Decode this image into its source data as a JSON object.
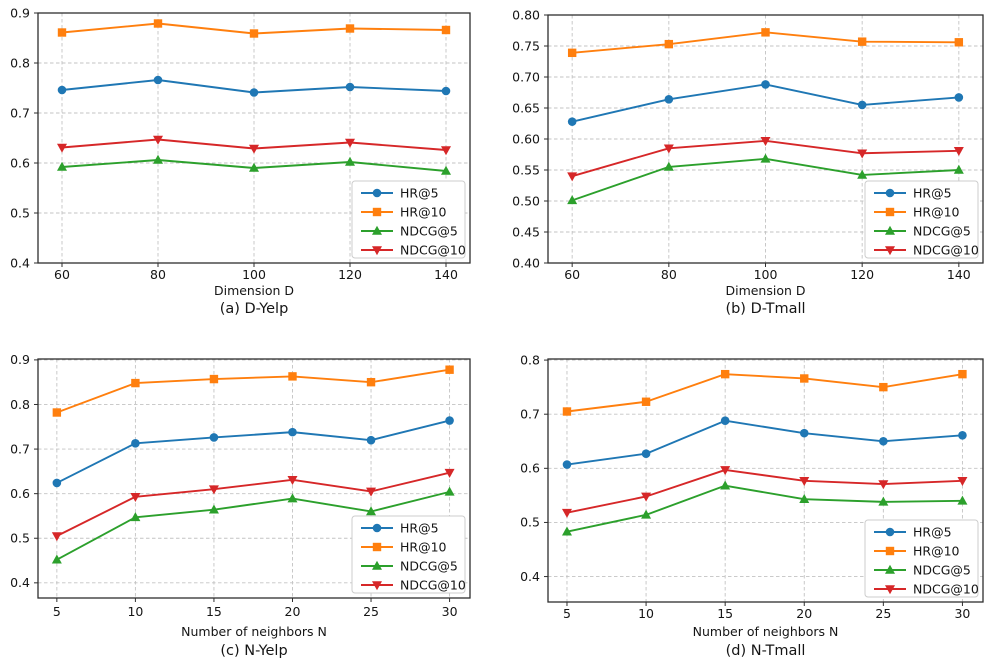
{
  "figure": {
    "background": "#ffffff",
    "text_color": "#151515",
    "grid_color": "#c3c3c3",
    "grid_style": "dashed",
    "legend_border_color": "#cccccc"
  },
  "chart_data": [
    {
      "id": "a",
      "type": "line",
      "title": "(a) D-Yelp",
      "xlabel": "Dimension D",
      "ylabel": "",
      "x": [
        60,
        80,
        100,
        120,
        140
      ],
      "xtick_labels": [
        "60",
        "80",
        "100",
        "120",
        "140"
      ],
      "xlim": [
        55,
        145
      ],
      "ylim": [
        0.4,
        0.9
      ],
      "yticks": [
        0.4,
        0.5,
        0.6,
        0.7,
        0.8,
        0.9
      ],
      "ytick_labels": [
        "0.4",
        "0.5",
        "0.6",
        "0.7",
        "0.8",
        "0.9"
      ],
      "grid": true,
      "legend_position": "lower-right",
      "series": [
        {
          "name": "HR@5",
          "color": "#1f77b4",
          "marker": "circle",
          "values": [
            0.746,
            0.766,
            0.741,
            0.752,
            0.744
          ]
        },
        {
          "name": "HR@10",
          "color": "#ff7f0e",
          "marker": "square",
          "values": [
            0.861,
            0.879,
            0.859,
            0.869,
            0.866
          ]
        },
        {
          "name": "NDCG@5",
          "color": "#2ca02c",
          "marker": "triangle-up",
          "values": [
            0.592,
            0.606,
            0.59,
            0.602,
            0.584
          ]
        },
        {
          "name": "NDCG@10",
          "color": "#d62728",
          "marker": "triangle-down",
          "values": [
            0.631,
            0.647,
            0.629,
            0.641,
            0.626
          ]
        }
      ]
    },
    {
      "id": "b",
      "type": "line",
      "title": "(b) D-Tmall",
      "xlabel": "Dimension D",
      "ylabel": "",
      "x": [
        60,
        80,
        100,
        120,
        140
      ],
      "xtick_labels": [
        "60",
        "80",
        "100",
        "120",
        "140"
      ],
      "xlim": [
        55,
        145
      ],
      "ylim": [
        0.4,
        0.8
      ],
      "yticks": [
        0.4,
        0.45,
        0.5,
        0.55,
        0.6,
        0.65,
        0.7,
        0.75,
        0.8
      ],
      "ytick_labels": [
        "0.40",
        "0.45",
        "0.50",
        "0.55",
        "0.60",
        "0.65",
        "0.70",
        "0.75",
        "0.80"
      ],
      "grid": true,
      "legend_position": "lower-right",
      "series": [
        {
          "name": "HR@5",
          "color": "#1f77b4",
          "marker": "circle",
          "values": [
            0.628,
            0.664,
            0.688,
            0.655,
            0.667
          ]
        },
        {
          "name": "HR@10",
          "color": "#ff7f0e",
          "marker": "square",
          "values": [
            0.739,
            0.753,
            0.772,
            0.757,
            0.756
          ]
        },
        {
          "name": "NDCG@5",
          "color": "#2ca02c",
          "marker": "triangle-up",
          "values": [
            0.501,
            0.555,
            0.568,
            0.542,
            0.55
          ]
        },
        {
          "name": "NDCG@10",
          "color": "#d62728",
          "marker": "triangle-down",
          "values": [
            0.54,
            0.585,
            0.597,
            0.577,
            0.581
          ]
        }
      ]
    },
    {
      "id": "c",
      "type": "line",
      "title": "(c) N-Yelp",
      "xlabel": "Number of neighbors N",
      "ylabel": "",
      "x": [
        5,
        10,
        15,
        20,
        25,
        30
      ],
      "xtick_labels": [
        "5",
        "10",
        "15",
        "20",
        "25",
        "30"
      ],
      "xlim": [
        3.8,
        31.3
      ],
      "ylim": [
        0.366,
        0.902
      ],
      "yticks": [
        0.4,
        0.5,
        0.6,
        0.7,
        0.8,
        0.9
      ],
      "ytick_labels": [
        "0.4",
        "0.5",
        "0.6",
        "0.7",
        "0.8",
        "0.9"
      ],
      "grid": true,
      "legend_position": "lower-right",
      "series": [
        {
          "name": "HR@5",
          "color": "#1f77b4",
          "marker": "circle",
          "values": [
            0.624,
            0.713,
            0.726,
            0.738,
            0.72,
            0.764
          ]
        },
        {
          "name": "HR@10",
          "color": "#ff7f0e",
          "marker": "square",
          "values": [
            0.782,
            0.848,
            0.857,
            0.863,
            0.85,
            0.878
          ]
        },
        {
          "name": "NDCG@5",
          "color": "#2ca02c",
          "marker": "triangle-up",
          "values": [
            0.452,
            0.547,
            0.564,
            0.589,
            0.56,
            0.604
          ]
        },
        {
          "name": "NDCG@10",
          "color": "#d62728",
          "marker": "triangle-down",
          "values": [
            0.505,
            0.593,
            0.61,
            0.631,
            0.605,
            0.647
          ]
        }
      ]
    },
    {
      "id": "d",
      "type": "line",
      "title": "(d) N-Tmall",
      "xlabel": "Number of neighbors N",
      "ylabel": "",
      "x": [
        5,
        10,
        15,
        20,
        25,
        30
      ],
      "xtick_labels": [
        "5",
        "10",
        "15",
        "20",
        "25",
        "30"
      ],
      "xlim": [
        3.8,
        31.3
      ],
      "ylim": [
        0.353,
        0.802
      ],
      "yticks": [
        0.4,
        0.5,
        0.6,
        0.7,
        0.8
      ],
      "ytick_labels": [
        "0.4",
        "0.5",
        "0.6",
        "0.7",
        "0.8"
      ],
      "grid": true,
      "legend_position": "lower-right",
      "series": [
        {
          "name": "HR@5",
          "color": "#1f77b4",
          "marker": "circle",
          "values": [
            0.607,
            0.627,
            0.688,
            0.665,
            0.65,
            0.661
          ]
        },
        {
          "name": "HR@10",
          "color": "#ff7f0e",
          "marker": "square",
          "values": [
            0.705,
            0.723,
            0.774,
            0.766,
            0.75,
            0.774
          ]
        },
        {
          "name": "NDCG@5",
          "color": "#2ca02c",
          "marker": "triangle-up",
          "values": [
            0.483,
            0.514,
            0.568,
            0.543,
            0.538,
            0.54
          ]
        },
        {
          "name": "NDCG@10",
          "color": "#d62728",
          "marker": "triangle-down",
          "values": [
            0.518,
            0.548,
            0.597,
            0.577,
            0.571,
            0.577
          ]
        }
      ]
    }
  ]
}
